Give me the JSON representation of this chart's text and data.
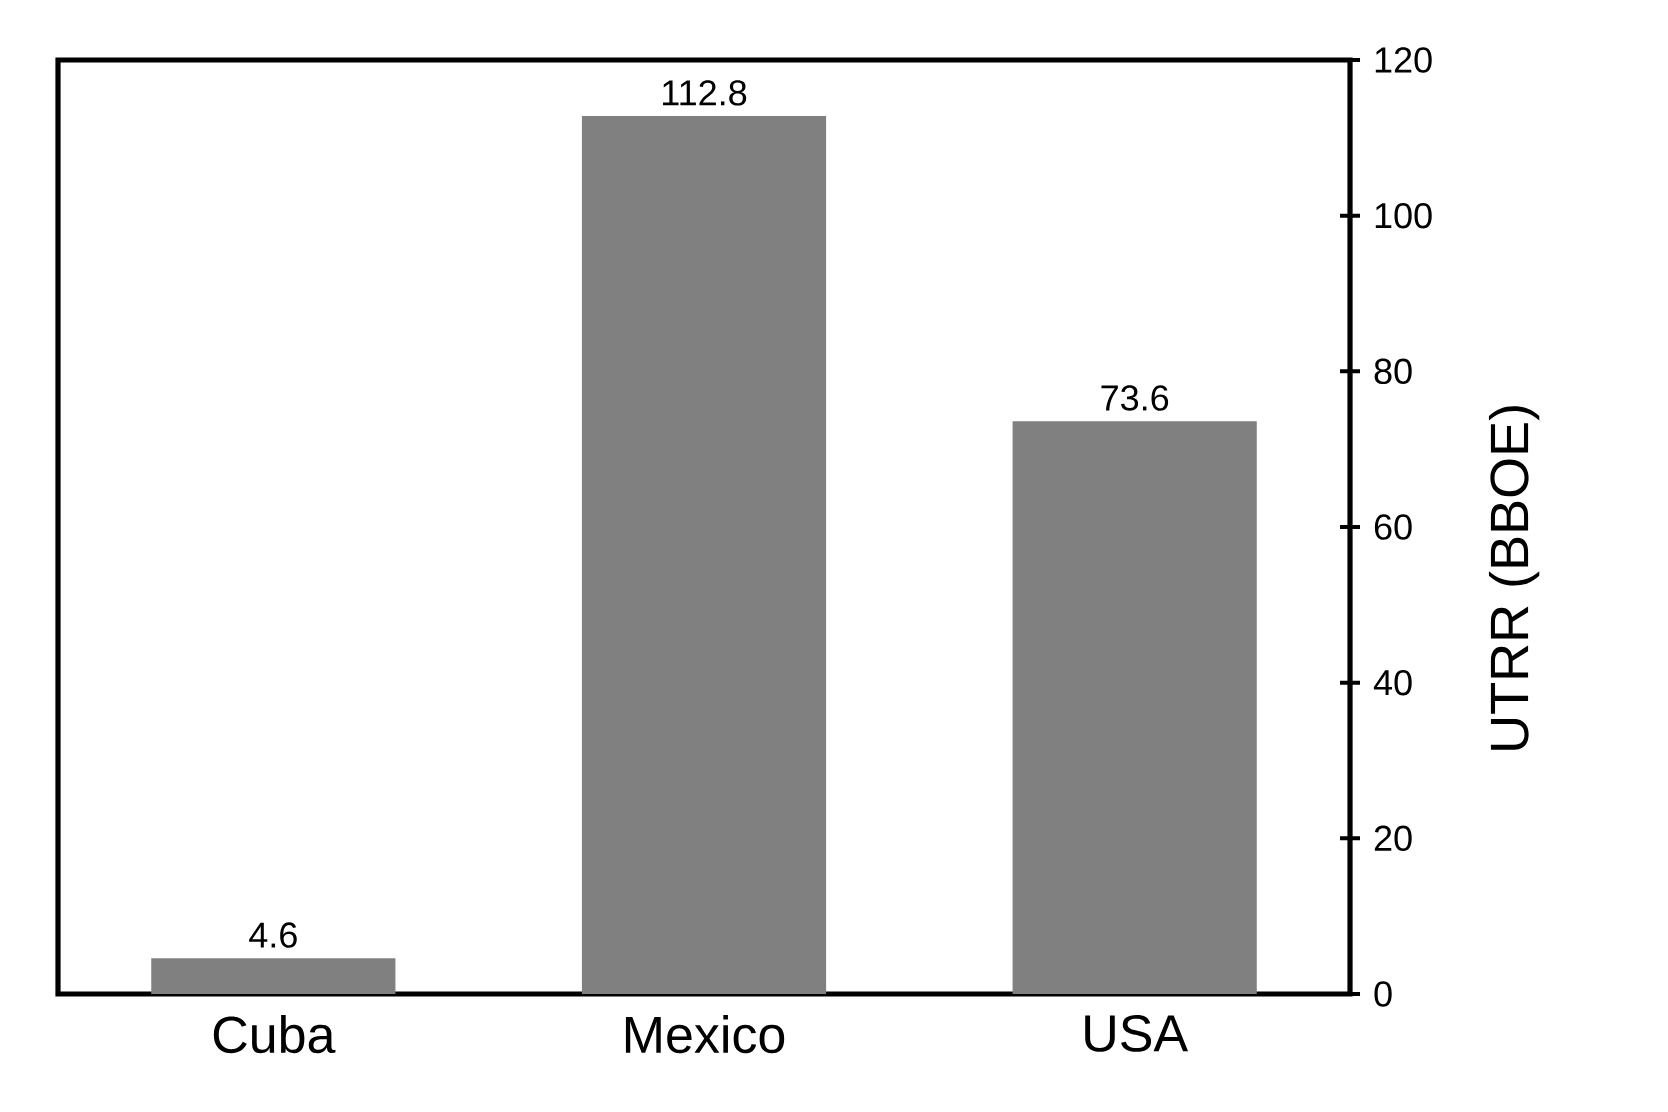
{
  "chart_data": {
    "type": "bar",
    "categories": [
      "Cuba",
      "Mexico",
      "USA"
    ],
    "values": [
      4.6,
      112.8,
      73.6
    ],
    "color": "#808080",
    "ylabel": "UTRR (BBOE)",
    "ylim": [
      0,
      120
    ],
    "yticks": [
      0,
      20,
      40,
      60,
      80,
      100,
      120
    ],
    "data_labels": true
  }
}
